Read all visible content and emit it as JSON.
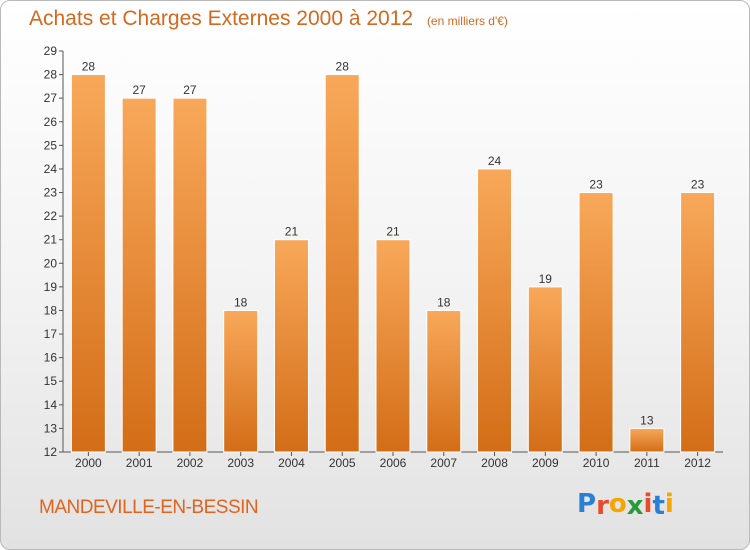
{
  "header": {
    "title": "Achats et Charges Externes 2000 à 2012",
    "subtitle": "(en milliers d'€)"
  },
  "footer": {
    "place": "MANDEVILLE-EN-BESSIN",
    "logo": {
      "letters": [
        "P",
        "r",
        "o",
        "x",
        "i",
        "t",
        "i"
      ],
      "colors": [
        "#2a7fd4",
        "#e94b2a",
        "#f5a400",
        "#2a9a3a",
        "#e94b2a",
        "#2a7fd4",
        "#f5a400"
      ]
    }
  },
  "chart_data": {
    "type": "bar",
    "categories": [
      "2000",
      "2001",
      "2002",
      "2003",
      "2004",
      "2005",
      "2006",
      "2007",
      "2008",
      "2009",
      "2010",
      "2011",
      "2012"
    ],
    "values": [
      28,
      27,
      27,
      18,
      21,
      28,
      21,
      18,
      24,
      19,
      23,
      13,
      23
    ],
    "data_labels": [
      "28",
      "27",
      "27",
      "18",
      "21",
      "28",
      "21",
      "18",
      "24",
      "19",
      "23",
      "13",
      "23"
    ],
    "yticks": [
      "12",
      "13",
      "14",
      "15",
      "16",
      "17",
      "18",
      "19",
      "20",
      "21",
      "22",
      "23",
      "24",
      "25",
      "26",
      "27",
      "28",
      "29"
    ],
    "ylim": [
      12,
      29
    ],
    "grid": false,
    "colors": {
      "bar_top": "#f8a85a",
      "bar_bottom": "#d36d17",
      "axis": "#555555",
      "text": "#333333"
    }
  }
}
